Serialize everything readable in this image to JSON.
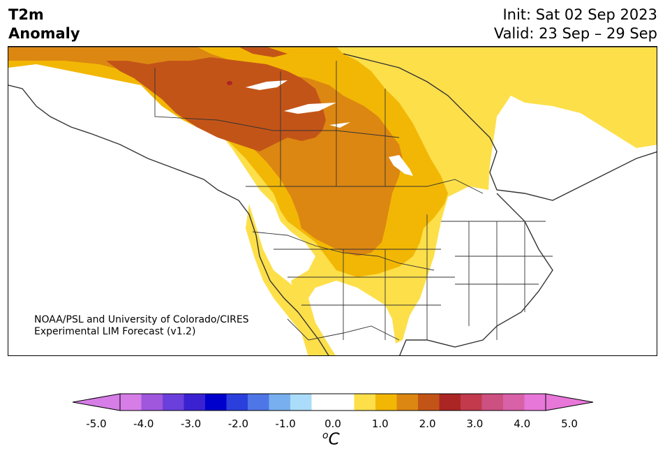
{
  "title": {
    "line1": "T2m",
    "line2": "Anomaly"
  },
  "period": {
    "init": "Init: Sat 02 Sep 2023",
    "valid": "Valid: 23 Sep – 29 Sep"
  },
  "credit": {
    "line1": "NOAA/PSL and University of Colorado/CIRES",
    "line2": "Experimental LIM Forecast (v1.2)"
  },
  "colorbar": {
    "tick_labels": [
      "-5.0",
      "-4.0",
      "-3.0",
      "-2.0",
      "-1.0",
      "0.0",
      "1.0",
      "2.0",
      "3.0",
      "4.0",
      "5.0"
    ],
    "units_base": "C",
    "units_sup": "o",
    "colors": [
      "#d67de7",
      "#a057de",
      "#6b3fdc",
      "#3a22d2",
      "#0000cc",
      "#2a3fdb",
      "#4e76e6",
      "#78b0ef",
      "#abdcf9",
      "#ffffff",
      "#ffffff",
      "#fddf4a",
      "#f2b705",
      "#dc8712",
      "#c35418",
      "#ab2524",
      "#c23a4c",
      "#cc5080",
      "#d861a8",
      "#e777d8"
    ],
    "under_color": "#d67de7",
    "over_color": "#e777d8"
  },
  "map": {
    "region": "North America",
    "anomaly_colors": {
      "0.5-1.0": "#fddf4a",
      "1.0-1.5": "#f2b705",
      "1.5-2.0": "#dc8712",
      "2.0-2.5": "#c35418",
      "2.5-3.0": "#ab2524"
    }
  }
}
